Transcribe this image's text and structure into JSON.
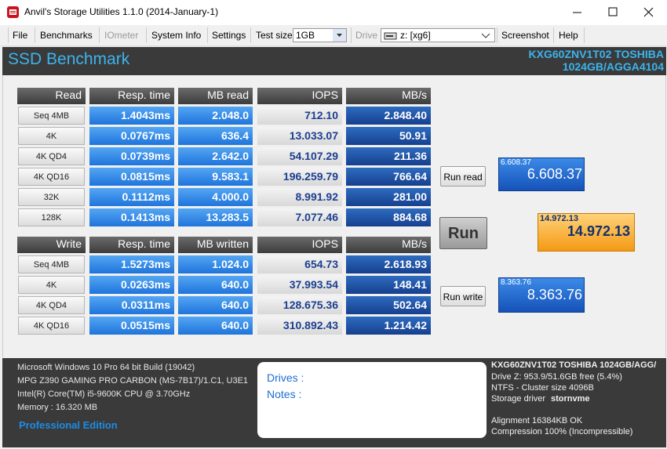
{
  "window": {
    "title": "Anvil's Storage Utilities 1.1.0 (2014-January-1)"
  },
  "menu": {
    "items": [
      "File",
      "Benchmarks",
      "IOmeter",
      "System Info",
      "Settings"
    ],
    "test_size_label": "Test size",
    "test_size": "1GB",
    "drive_label": "Drive",
    "drive": "z: [xg6]",
    "more": [
      "Screenshot",
      "Help"
    ]
  },
  "header": {
    "title": "SSD Benchmark",
    "device_line1": "KXG60ZNV1T02 TOSHIBA",
    "device_line2": "1024GB/AGGA4104"
  },
  "read_table": {
    "columns": [
      "Read",
      "Resp. time",
      "MB read",
      "IOPS",
      "MB/s"
    ],
    "rows": [
      [
        "Seq 4MB",
        "1.4043ms",
        "2.048.0",
        "712.10",
        "2.848.40"
      ],
      [
        "4K",
        "0.0767ms",
        "636.4",
        "13.033.07",
        "50.91"
      ],
      [
        "4K QD4",
        "0.0739ms",
        "2.642.0",
        "54.107.29",
        "211.36"
      ],
      [
        "4K QD16",
        "0.0815ms",
        "9.583.1",
        "196.259.79",
        "766.64"
      ],
      [
        "32K",
        "0.1112ms",
        "4.000.0",
        "8.991.92",
        "281.00"
      ],
      [
        "128K",
        "0.1413ms",
        "13.283.5",
        "7.077.46",
        "884.68"
      ]
    ]
  },
  "write_table": {
    "columns": [
      "Write",
      "Resp. time",
      "MB written",
      "IOPS",
      "MB/s"
    ],
    "rows": [
      [
        "Seq 4MB",
        "1.5273ms",
        "1.024.0",
        "654.73",
        "2.618.93"
      ],
      [
        "4K",
        "0.0263ms",
        "640.0",
        "37.993.54",
        "148.41"
      ],
      [
        "4K QD4",
        "0.0311ms",
        "640.0",
        "128.675.36",
        "502.64"
      ],
      [
        "4K QD16",
        "0.0515ms",
        "640.0",
        "310.892.43",
        "1.214.42"
      ]
    ]
  },
  "buttons": {
    "run_read": "Run read",
    "run": "Run",
    "run_write": "Run write"
  },
  "scores": {
    "read_small": "6.608.37",
    "read": "6.608.37",
    "total_small": "14.972.13",
    "total": "14.972.13",
    "write_small": "8.363.76",
    "write": "8.363.76"
  },
  "system_info": [
    "Microsoft Windows 10 Pro 64 bit Build (19042)",
    "MPG Z390 GAMING PRO CARBON (MS-7B17)/1.C1, U3E1",
    "Intel(R) Core(TM) i5-9600K CPU @ 3.70GHz",
    "Memory : 16.320 MB"
  ],
  "edition": "Professional Edition",
  "notes": {
    "drives": "Drives :",
    "notes": "Notes :"
  },
  "drive_info": {
    "title": "KXG60ZNV1T02 TOSHIBA 1024GB/AGG/",
    "free": "Drive Z: 953.9/51.6GB free (5.4%)",
    "cluster": "NTFS - Cluster size 4096B",
    "driver_label": "Storage driver",
    "driver": "stornvme",
    "alignment": "Alignment 16384KB OK",
    "compression": "Compression 100% (Incompressible)"
  }
}
